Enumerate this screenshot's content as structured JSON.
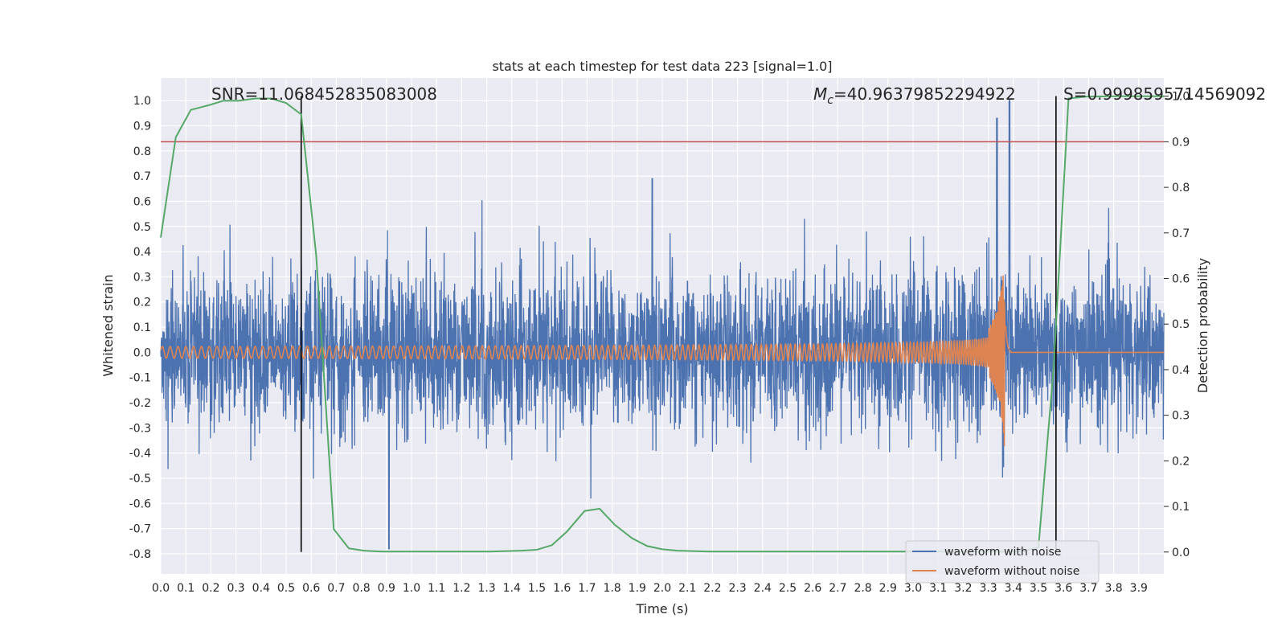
{
  "chart_data": {
    "type": "line",
    "title": "stats at each timestep for test data 223 [signal=1.0]",
    "xlabel": "Time (s)",
    "ylabel_left": "Whitened strain",
    "ylabel_right": "Detection probability",
    "xlim": [
      0.0,
      4.0
    ],
    "ylim_left": [
      -0.88,
      1.09
    ],
    "ylim_right": [
      -0.048,
      1.04
    ],
    "x_ticks": [
      "0.0",
      "0.1",
      "0.2",
      "0.3",
      "0.4",
      "0.5",
      "0.6",
      "0.7",
      "0.8",
      "0.9",
      "1.0",
      "1.1",
      "1.2",
      "1.3",
      "1.4",
      "1.5",
      "1.6",
      "1.7",
      "1.8",
      "1.9",
      "2.0",
      "2.1",
      "2.2",
      "2.3",
      "2.4",
      "2.5",
      "2.6",
      "2.7",
      "2.8",
      "2.9",
      "3.0",
      "3.1",
      "3.2",
      "3.3",
      "3.4",
      "3.5",
      "3.6",
      "3.7",
      "3.8",
      "3.9"
    ],
    "y_left_ticks": [
      "1.0",
      "0.9",
      "0.8",
      "0.7",
      "0.6",
      "0.5",
      "0.4",
      "0.3",
      "0.2",
      "0.1",
      "0.0",
      "-0.1",
      "-0.2",
      "-0.3",
      "-0.4",
      "-0.5",
      "-0.6",
      "-0.7",
      "-0.8"
    ],
    "y_right_ticks": [
      "1.0",
      "0.9",
      "0.8",
      "0.7",
      "0.6",
      "0.5",
      "0.4",
      "0.3",
      "0.2",
      "0.1",
      "0.0"
    ],
    "grid": true,
    "legend_position": "bottom-right",
    "annotations": {
      "snr": "SNR=11.068452835083008",
      "mc_symbol": "M",
      "mc_sub": "c",
      "mc_value": "=40.96379852294922",
      "s": "S=0.9998595714569092"
    },
    "vlines_x": [
      0.56,
      3.57
    ],
    "threshold_probability": 0.9,
    "series": [
      {
        "name": "waveform with noise",
        "axis": "left",
        "color": "#4c72b0",
        "noise_sigma": 0.15,
        "sample_rate": 2048
      },
      {
        "name": "waveform without noise",
        "axis": "left",
        "color": "#dd8452",
        "chirp_merger_x": 3.37,
        "chirp_peak_amplitude": 0.5
      },
      {
        "axis": "right",
        "color": "#55a868",
        "x": [
          0.0,
          0.06,
          0.12,
          0.19,
          0.25,
          0.31,
          0.38,
          0.44,
          0.5,
          0.56,
          0.62,
          0.69,
          0.75,
          0.81,
          0.88,
          0.94,
          1.0,
          1.06,
          1.12,
          1.19,
          1.25,
          1.31,
          1.38,
          1.44,
          1.5,
          1.56,
          1.62,
          1.69,
          1.75,
          1.81,
          1.88,
          1.94,
          2.0,
          2.06,
          2.12,
          2.19,
          2.25,
          2.31,
          2.38,
          2.44,
          2.5,
          2.56,
          2.62,
          2.69,
          2.75,
          2.81,
          2.88,
          2.94,
          3.0,
          3.06,
          3.12,
          3.19,
          3.25,
          3.31,
          3.38,
          3.44,
          3.5,
          3.56,
          3.62,
          3.69,
          3.75,
          3.81,
          3.88,
          3.94,
          4.0
        ],
        "y": [
          0.69,
          0.91,
          0.97,
          0.98,
          0.99,
          0.99,
          0.995,
          0.995,
          0.985,
          0.96,
          0.65,
          0.05,
          0.008,
          0.003,
          0.001,
          0.001,
          0.001,
          0.001,
          0.001,
          0.001,
          0.001,
          0.001,
          0.002,
          0.003,
          0.005,
          0.015,
          0.045,
          0.09,
          0.095,
          0.06,
          0.03,
          0.013,
          0.006,
          0.003,
          0.002,
          0.001,
          0.001,
          0.001,
          0.001,
          0.001,
          0.001,
          0.001,
          0.001,
          0.001,
          0.001,
          0.001,
          0.001,
          0.001,
          0.001,
          0.001,
          0.001,
          0.001,
          0.001,
          0.001,
          0.001,
          0.002,
          0.01,
          0.4,
          0.995,
          0.999,
          0.9995,
          0.9998,
          0.9998,
          0.9999,
          0.9999
        ]
      }
    ]
  }
}
